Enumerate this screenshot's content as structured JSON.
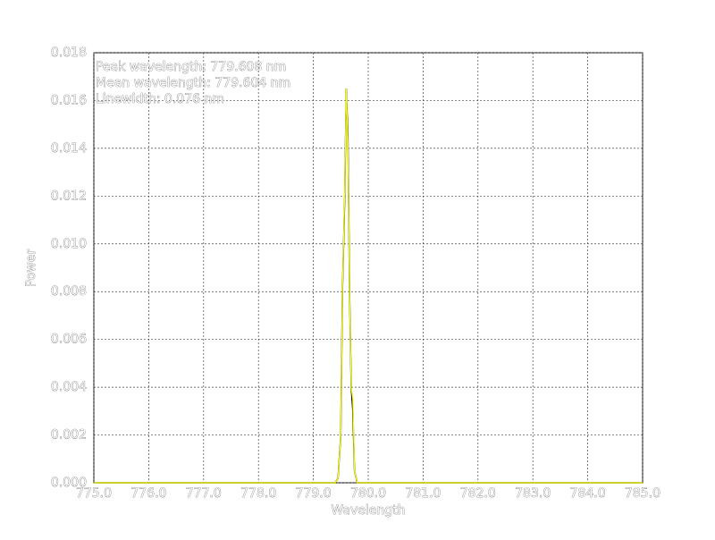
{
  "chart_data": {
    "type": "line",
    "xlabel": "Wavelength",
    "ylabel": "Power",
    "annotations": [
      "Peak wavelength: 779.608 nm",
      "Mean wavelength: 779.604 nm",
      "Linewidth: 0.076 nm"
    ],
    "x": [
      775,
      779.4,
      779.45,
      779.5,
      779.53,
      779.57,
      779.6,
      779.63,
      779.66,
      779.69,
      779.72,
      779.75,
      779.8,
      785
    ],
    "series": [
      {
        "color": "#000000",
        "values": [
          0,
          0,
          0.0002,
          0.002,
          0.008,
          0.0118,
          0.0165,
          0.0145,
          0.008,
          0.004,
          0.003,
          0.0005,
          0,
          0
        ]
      },
      {
        "color": "#ffff00",
        "values": [
          0,
          0,
          0.0002,
          0.002,
          0.008,
          0.012,
          0.0165,
          0.0142,
          0.008,
          0.004,
          0.0035,
          0.0005,
          0,
          0
        ]
      }
    ],
    "xlim": [
      775,
      785
    ],
    "xticks": [
      {
        "value": 775,
        "label": "775.0"
      },
      {
        "value": 776,
        "label": "776.0"
      },
      {
        "value": 777,
        "label": "777.0"
      },
      {
        "value": 778,
        "label": "778.0"
      },
      {
        "value": 779,
        "label": "779.0"
      },
      {
        "value": 780,
        "label": "780.0"
      },
      {
        "value": 781,
        "label": "781.0"
      },
      {
        "value": 782,
        "label": "782.0"
      },
      {
        "value": 783,
        "label": "783.0"
      },
      {
        "value": 784,
        "label": "784.0"
      },
      {
        "value": 785,
        "label": "785.0"
      }
    ],
    "ylim": [
      0,
      0.018
    ],
    "yticks": [
      {
        "value": 0,
        "label": "0.000"
      },
      0.002,
      0.004,
      0.006,
      0.008,
      {
        "value": 0.01,
        "label": "0.010"
      },
      0.012,
      0.014,
      0.016,
      0.018
    ],
    "grid": true
  }
}
